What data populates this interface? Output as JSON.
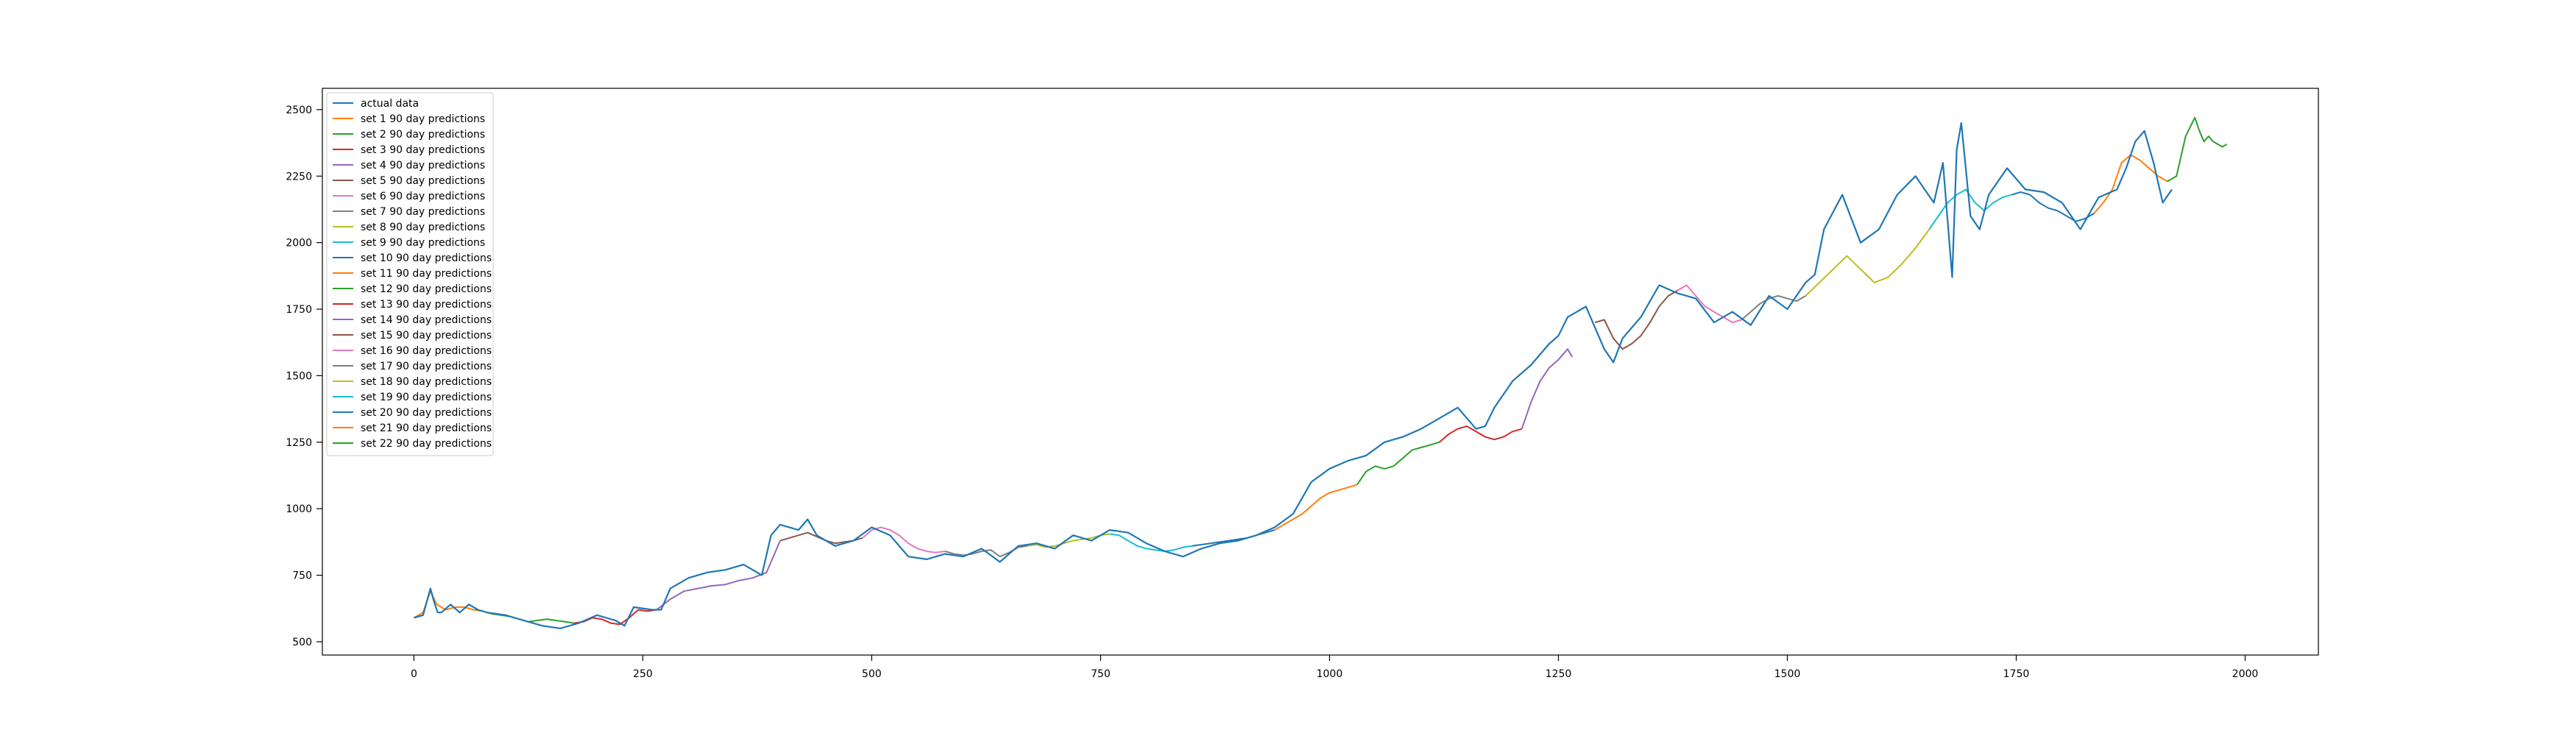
{
  "chart_data": {
    "type": "line",
    "title": "",
    "xlabel": "",
    "ylabel": "",
    "xlim": [
      -100,
      2080
    ],
    "ylim": [
      450,
      2580
    ],
    "xticks": [
      0,
      250,
      500,
      750,
      1000,
      1250,
      1500,
      1750,
      2000
    ],
    "yticks": [
      500,
      750,
      1000,
      1250,
      1500,
      1750,
      2000,
      2250,
      2500
    ],
    "grid": false,
    "legend_position": "top-left",
    "actual": {
      "name": "actual data",
      "color": "#1f77b4",
      "x": [
        0,
        10,
        18,
        22,
        26,
        30,
        40,
        50,
        60,
        70,
        80,
        100,
        120,
        140,
        160,
        180,
        200,
        220,
        230,
        240,
        260,
        270,
        280,
        300,
        320,
        340,
        360,
        380,
        390,
        400,
        420,
        430,
        440,
        460,
        480,
        500,
        520,
        540,
        560,
        580,
        600,
        620,
        640,
        660,
        680,
        700,
        720,
        740,
        760,
        780,
        800,
        820,
        840,
        860,
        880,
        900,
        920,
        940,
        960,
        980,
        1000,
        1020,
        1040,
        1060,
        1080,
        1100,
        1120,
        1140,
        1160,
        1170,
        1180,
        1200,
        1220,
        1240,
        1250,
        1260,
        1280,
        1300,
        1310,
        1320,
        1340,
        1360,
        1380,
        1400,
        1420,
        1440,
        1460,
        1480,
        1500,
        1520,
        1530,
        1540,
        1560,
        1580,
        1600,
        1620,
        1640,
        1660,
        1670,
        1680,
        1685,
        1690,
        1700,
        1710,
        1720,
        1740,
        1760,
        1780,
        1800,
        1820,
        1840,
        1860,
        1870,
        1880,
        1890,
        1900,
        1910,
        1920
      ],
      "y": [
        590,
        600,
        700,
        650,
        610,
        610,
        640,
        610,
        640,
        620,
        610,
        600,
        580,
        560,
        550,
        570,
        600,
        580,
        560,
        630,
        620,
        620,
        700,
        740,
        760,
        770,
        790,
        750,
        900,
        940,
        920,
        960,
        900,
        860,
        880,
        930,
        900,
        820,
        810,
        830,
        820,
        850,
        800,
        860,
        870,
        850,
        900,
        880,
        920,
        910,
        870,
        840,
        820,
        850,
        870,
        880,
        900,
        930,
        980,
        1100,
        1150,
        1180,
        1200,
        1250,
        1270,
        1300,
        1340,
        1380,
        1300,
        1310,
        1380,
        1480,
        1540,
        1620,
        1650,
        1720,
        1760,
        1600,
        1550,
        1640,
        1720,
        1840,
        1810,
        1790,
        1700,
        1740,
        1690,
        1800,
        1750,
        1850,
        1880,
        2050,
        2180,
        2000,
        2050,
        2180,
        2250,
        2150,
        2300,
        1870,
        2350,
        2450,
        2100,
        2050,
        2180,
        2280,
        2200,
        2190,
        2150,
        2050,
        2170,
        2200,
        2280,
        2380,
        2420,
        2300,
        2150,
        2200
      ]
    },
    "series": [
      {
        "name": "set 1 90 day predictions",
        "color": "#ff7f0e",
        "x": [
          0,
          10,
          18,
          25,
          35,
          45,
          55,
          65,
          75,
          85
        ],
        "y": [
          590,
          610,
          690,
          640,
          620,
          630,
          630,
          620,
          615,
          605
        ]
      },
      {
        "name": "set 2 90 day predictions",
        "color": "#2ca02c",
        "x": [
          85,
          95,
          105,
          115,
          125,
          135,
          145,
          155,
          165,
          175
        ],
        "y": [
          605,
          600,
          595,
          585,
          575,
          580,
          585,
          580,
          575,
          570
        ]
      },
      {
        "name": "set 3 90 day predictions",
        "color": "#d62728",
        "x": [
          175,
          185,
          195,
          205,
          215,
          225,
          235,
          245,
          255,
          265
        ],
        "y": [
          570,
          575,
          590,
          585,
          570,
          565,
          590,
          620,
          615,
          620
        ]
      },
      {
        "name": "set 4 90 day predictions",
        "color": "#9467bd",
        "x": [
          265,
          280,
          295,
          310,
          325,
          340,
          355,
          370,
          385,
          400
        ],
        "y": [
          620,
          660,
          690,
          700,
          710,
          715,
          730,
          740,
          760,
          880
        ]
      },
      {
        "name": "set 5 90 day predictions",
        "color": "#8c564b",
        "x": [
          400,
          410,
          420,
          430,
          440,
          450,
          460,
          470,
          480,
          490
        ],
        "y": [
          880,
          890,
          900,
          910,
          895,
          880,
          870,
          875,
          880,
          890
        ]
      },
      {
        "name": "set 6 90 day predictions",
        "color": "#e377c2",
        "x": [
          490,
          500,
          510,
          520,
          530,
          540,
          550,
          560,
          570,
          580
        ],
        "y": [
          890,
          920,
          930,
          920,
          900,
          870,
          850,
          840,
          835,
          840
        ]
      },
      {
        "name": "set 7 90 day predictions",
        "color": "#7f7f7f",
        "x": [
          580,
          590,
          600,
          610,
          620,
          630,
          640,
          650,
          660,
          670
        ],
        "y": [
          840,
          830,
          825,
          830,
          840,
          845,
          820,
          835,
          855,
          860
        ]
      },
      {
        "name": "set 8 90 day predictions",
        "color": "#bcbd22",
        "x": [
          670,
          680,
          690,
          700,
          710,
          720,
          730,
          740,
          750,
          760
        ],
        "y": [
          860,
          865,
          855,
          860,
          870,
          880,
          885,
          890,
          900,
          905
        ]
      },
      {
        "name": "set 9 90 day predictions",
        "color": "#17becf",
        "x": [
          760,
          770,
          780,
          790,
          800,
          810,
          820,
          830,
          840,
          850
        ],
        "y": [
          905,
          900,
          880,
          860,
          850,
          845,
          840,
          845,
          855,
          860
        ]
      },
      {
        "name": "set 10 90 day predictions",
        "color": "#1f77b4",
        "x": [
          850,
          860,
          870,
          880,
          890,
          900,
          910,
          920,
          930,
          940
        ],
        "y": [
          860,
          865,
          870,
          875,
          880,
          885,
          890,
          900,
          910,
          920
        ]
      },
      {
        "name": "set 11 90 day predictions",
        "color": "#ff7f0e",
        "x": [
          940,
          950,
          960,
          970,
          980,
          990,
          1000,
          1010,
          1020,
          1030
        ],
        "y": [
          920,
          940,
          960,
          980,
          1010,
          1040,
          1060,
          1070,
          1080,
          1090
        ]
      },
      {
        "name": "set 12 90 day predictions",
        "color": "#2ca02c",
        "x": [
          1030,
          1040,
          1050,
          1060,
          1070,
          1080,
          1090,
          1100,
          1110,
          1120
        ],
        "y": [
          1090,
          1140,
          1160,
          1150,
          1160,
          1190,
          1220,
          1230,
          1240,
          1250
        ]
      },
      {
        "name": "set 13 90 day predictions",
        "color": "#d62728",
        "x": [
          1120,
          1130,
          1140,
          1150,
          1160,
          1170,
          1180,
          1190,
          1200,
          1210
        ],
        "y": [
          1250,
          1280,
          1300,
          1310,
          1290,
          1270,
          1260,
          1270,
          1290,
          1300
        ]
      },
      {
        "name": "set 14 90 day predictions",
        "color": "#9467bd",
        "x": [
          1210,
          1220,
          1230,
          1240,
          1250,
          1260,
          1265
        ],
        "y": [
          1300,
          1400,
          1480,
          1530,
          1560,
          1600,
          1570
        ]
      },
      {
        "name": "set 15 90 day predictions",
        "color": "#8c564b",
        "x": [
          1290,
          1300,
          1310,
          1320,
          1330,
          1340,
          1350,
          1360,
          1370,
          1380
        ],
        "y": [
          1700,
          1710,
          1640,
          1600,
          1620,
          1650,
          1700,
          1760,
          1800,
          1820
        ]
      },
      {
        "name": "set 16 90 day predictions",
        "color": "#e377c2",
        "x": [
          1380,
          1390,
          1400,
          1410,
          1420,
          1430,
          1440,
          1450
        ],
        "y": [
          1820,
          1840,
          1800,
          1760,
          1740,
          1720,
          1700,
          1710
        ]
      },
      {
        "name": "set 17 90 day predictions",
        "color": "#7f7f7f",
        "x": [
          1450,
          1460,
          1470,
          1480,
          1490,
          1500,
          1510,
          1520
        ],
        "y": [
          1710,
          1740,
          1770,
          1790,
          1800,
          1790,
          1780,
          1800
        ]
      },
      {
        "name": "set 18 90 day predictions",
        "color": "#bcbd22",
        "x": [
          1520,
          1535,
          1550,
          1565,
          1580,
          1595,
          1610,
          1625,
          1640,
          1655
        ],
        "y": [
          1800,
          1850,
          1900,
          1950,
          1900,
          1850,
          1870,
          1920,
          1980,
          2050
        ]
      },
      {
        "name": "set 19 90 day predictions",
        "color": "#17becf",
        "x": [
          1655,
          1665,
          1675,
          1685,
          1695,
          1705,
          1715,
          1725,
          1735,
          1745
        ],
        "y": [
          2050,
          2100,
          2150,
          2180,
          2200,
          2150,
          2120,
          2150,
          2170,
          2180
        ]
      },
      {
        "name": "set 20 90 day predictions",
        "color": "#1f77b4",
        "x": [
          1745,
          1755,
          1765,
          1775,
          1785,
          1795,
          1805,
          1815,
          1825,
          1835
        ],
        "y": [
          2180,
          2190,
          2180,
          2150,
          2130,
          2120,
          2100,
          2080,
          2090,
          2110
        ]
      },
      {
        "name": "set 21 90 day predictions",
        "color": "#ff7f0e",
        "x": [
          1835,
          1845,
          1855,
          1865,
          1875,
          1885,
          1895,
          1905,
          1915
        ],
        "y": [
          2110,
          2150,
          2200,
          2300,
          2330,
          2310,
          2280,
          2250,
          2230
        ]
      },
      {
        "name": "set 22 90 day predictions",
        "color": "#2ca02c",
        "x": [
          1915,
          1925,
          1935,
          1945,
          1950,
          1955,
          1960,
          1965,
          1970,
          1975,
          1980
        ],
        "y": [
          2230,
          2250,
          2400,
          2470,
          2420,
          2380,
          2400,
          2380,
          2370,
          2360,
          2370
        ]
      }
    ]
  }
}
